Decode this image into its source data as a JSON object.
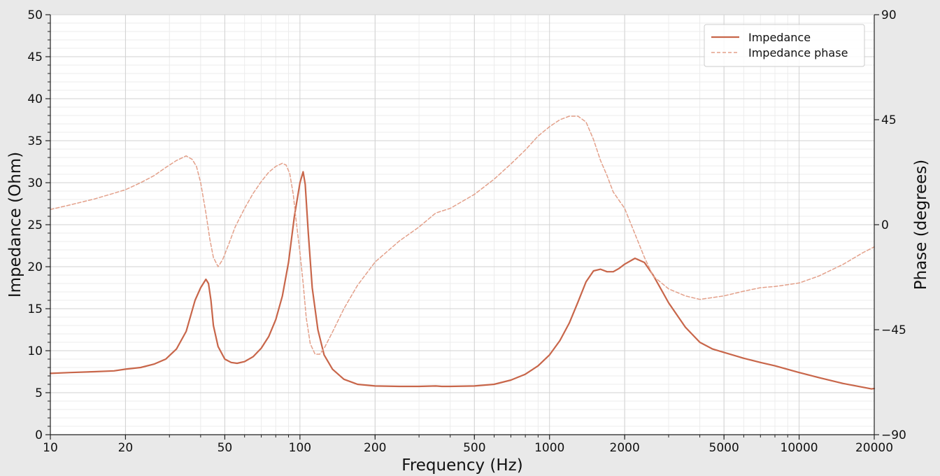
{
  "chart_data": {
    "type": "line",
    "xlabel": "Frequency (Hz)",
    "ylabel": "Impedance (Ohm)",
    "y2label": "Phase (degrees)",
    "x_scale": "log",
    "xlim": [
      10,
      20000
    ],
    "ylim": [
      0,
      50
    ],
    "y2lim": [
      -90,
      90
    ],
    "x_ticks": [
      10,
      20,
      50,
      100,
      200,
      500,
      1000,
      2000,
      5000,
      10000,
      20000
    ],
    "x_tick_labels": [
      "10",
      "20",
      "50",
      "100",
      "200",
      "500",
      "1000",
      "2000",
      "5000",
      "10000",
      "20000"
    ],
    "y_ticks": [
      0,
      5,
      10,
      15,
      20,
      25,
      30,
      35,
      40,
      45,
      50
    ],
    "y_tick_labels": [
      "0",
      "5",
      "10",
      "15",
      "20",
      "25",
      "30",
      "35",
      "40",
      "45",
      "50"
    ],
    "y2_ticks": [
      -90,
      -45,
      0,
      45,
      90
    ],
    "y2_tick_labels": [
      "−90",
      "−45",
      "0",
      "45",
      "90"
    ],
    "grid": true,
    "legend_position": "top-right",
    "colors": {
      "impedance": "#c8664a",
      "phase": "#e3a08a",
      "plot_bg": "#ffffff",
      "figure_bg": "#e9e9e9",
      "grid_major": "#d2d2d2",
      "grid_minor": "#ececec"
    },
    "series": [
      {
        "name": "Impedance",
        "axis": "left",
        "style": "solid",
        "x": [
          10,
          12,
          15,
          18,
          20,
          23,
          26,
          29,
          32,
          35,
          38,
          40,
          42,
          43,
          44,
          45,
          47,
          50,
          53,
          56,
          60,
          65,
          70,
          75,
          80,
          85,
          90,
          95,
          100,
          103,
          105,
          108,
          112,
          118,
          125,
          135,
          150,
          170,
          200,
          250,
          300,
          350,
          370,
          400,
          500,
          600,
          700,
          800,
          900,
          1000,
          1100,
          1200,
          1300,
          1400,
          1500,
          1600,
          1700,
          1800,
          1900,
          2000,
          2200,
          2400,
          2600,
          2800,
          3000,
          3500,
          4000,
          4500,
          5000,
          6000,
          7000,
          8000,
          10000,
          12000,
          15000,
          18000,
          19500,
          20000
        ],
        "values": [
          7.3,
          7.4,
          7.5,
          7.6,
          7.8,
          8.0,
          8.4,
          9.0,
          10.2,
          12.3,
          16.0,
          17.5,
          18.5,
          18.0,
          16.0,
          13.0,
          10.5,
          9.0,
          8.6,
          8.5,
          8.7,
          9.3,
          10.3,
          11.7,
          13.7,
          16.5,
          20.5,
          26.0,
          30.0,
          31.3,
          29.8,
          24.0,
          17.5,
          12.5,
          9.5,
          7.8,
          6.6,
          6.0,
          5.8,
          5.75,
          5.75,
          5.8,
          5.75,
          5.75,
          5.8,
          6.0,
          6.5,
          7.2,
          8.2,
          9.5,
          11.2,
          13.3,
          15.8,
          18.2,
          19.5,
          19.7,
          19.4,
          19.4,
          19.8,
          20.3,
          21.0,
          20.5,
          19.0,
          17.3,
          15.7,
          12.8,
          11.0,
          10.2,
          9.8,
          9.1,
          8.6,
          8.2,
          7.4,
          6.8,
          6.1,
          5.65,
          5.45,
          5.5
        ]
      },
      {
        "name": "Impedance phase",
        "axis": "right",
        "style": "dashed",
        "x": [
          10,
          12,
          15,
          18,
          20,
          23,
          26,
          29,
          32,
          35,
          37,
          38.5,
          40,
          42,
          43.5,
          45,
          47,
          49,
          52,
          55,
          60,
          65,
          70,
          75,
          80,
          85,
          88,
          91,
          94,
          97,
          100,
          103,
          106,
          110,
          115,
          120,
          125,
          135,
          150,
          170,
          200,
          250,
          300,
          350,
          400,
          500,
          600,
          700,
          800,
          900,
          1000,
          1100,
          1200,
          1300,
          1400,
          1500,
          1600,
          1700,
          1800,
          2000,
          2200,
          2400,
          2600,
          3000,
          3500,
          4000,
          5000,
          6000,
          7000,
          8000,
          10000,
          12000,
          15000,
          18000,
          20000
        ],
        "values": [
          6.5,
          8.5,
          11,
          13.5,
          15,
          18,
          21,
          24.5,
          27.5,
          29.5,
          28,
          25,
          18,
          5,
          -6,
          -14,
          -18,
          -15,
          -8,
          -1,
          7,
          13.5,
          18.5,
          22.5,
          25,
          26.3,
          25.6,
          22,
          13,
          0,
          -12,
          -25,
          -40,
          -51,
          -55.5,
          -55.5,
          -53,
          -46,
          -36,
          -26,
          -16,
          -7,
          -1,
          5,
          7,
          13,
          19.5,
          26,
          32,
          38,
          42,
          45,
          46.5,
          46.5,
          44,
          36.5,
          27.5,
          21,
          14,
          7,
          -4,
          -14,
          -22,
          -27.5,
          -30.5,
          -32,
          -30.5,
          -28.5,
          -27,
          -26.5,
          -25,
          -22,
          -17,
          -12,
          -9.5
        ]
      }
    ]
  }
}
